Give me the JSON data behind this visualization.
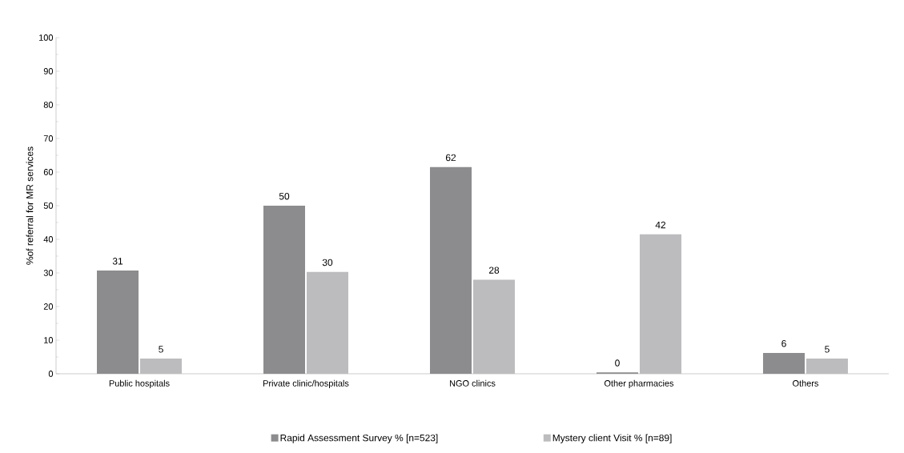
{
  "chart_data": {
    "type": "bar",
    "ylabel": "%of referral for MR services",
    "categories": [
      "Public hospitals",
      "Private clinic/hospitals",
      "NGO clinics",
      "Other pharmacies",
      "Others"
    ],
    "series": [
      {
        "name": "Rapid Assessment Survey % [n=523]",
        "color": "#8c8c8e",
        "values": [
          30.7,
          50,
          61.5,
          0.4,
          6.2
        ],
        "value_labels": [
          "31",
          "50",
          "62",
          "0",
          "6"
        ]
      },
      {
        "name": "Mystery client Visit % [n=89]",
        "color": "#bcbcbe",
        "values": [
          4.5,
          30.3,
          28,
          41.5,
          4.5
        ],
        "value_labels": [
          "5",
          "30",
          "28",
          "42",
          "5"
        ]
      }
    ],
    "ylim": [
      0,
      100
    ],
    "yticks": [
      0,
      10,
      20,
      30,
      40,
      50,
      60,
      70,
      80,
      90,
      100
    ],
    "legend": "bottom",
    "grid": false
  }
}
